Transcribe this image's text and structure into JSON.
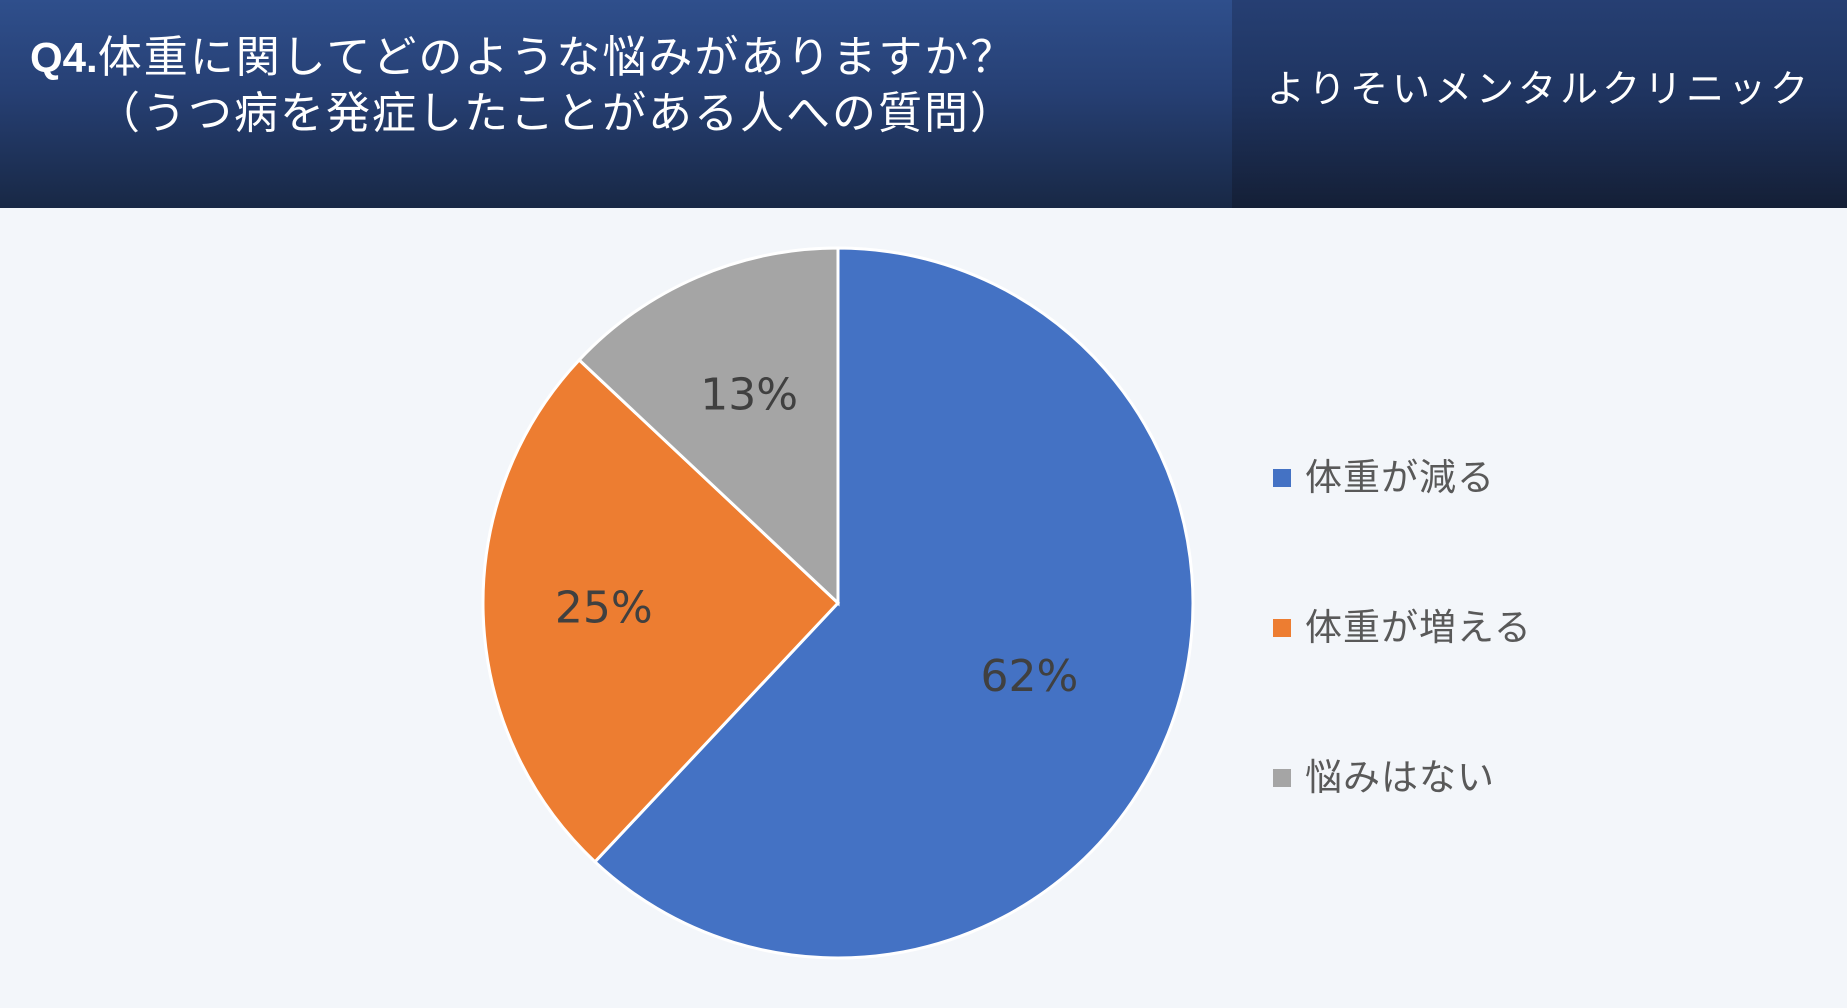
{
  "header": {
    "title_prefix": "Q4.",
    "title_line1": "体重に関してどのような悩みがありますか？",
    "title_line2": "（うつ病を発症したことがある人への質問）",
    "brand": "よりそいメンタルクリニック"
  },
  "colors": {
    "blue": "#4472c4",
    "orange": "#ed7d31",
    "gray": "#a5a5a5",
    "label_text": "#404040"
  },
  "chart_data": {
    "type": "pie",
    "title": "体重に関してどのような悩みがありますか？（うつ病を発症したことがある人への質問）",
    "categories": [
      "体重が減る",
      "体重が増える",
      "悩みはない"
    ],
    "values": [
      62,
      25,
      13
    ],
    "labels": [
      "62%",
      "25%",
      "13%"
    ],
    "legend_placement": "right"
  }
}
